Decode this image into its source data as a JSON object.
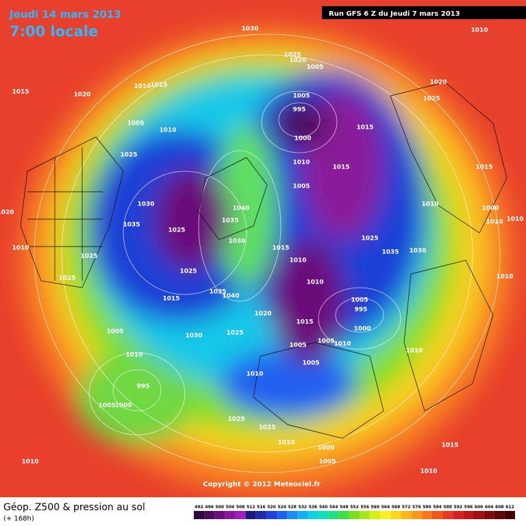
{
  "header": {
    "date": "Jeudi 14 mars 2013",
    "time": "7:00 locale",
    "run": "Run GFS 6 Z du Jeudi 7 mars 2013"
  },
  "map": {
    "isobar_labels": [
      1030,
      1010,
      1025,
      1020,
      1005,
      1015,
      1020,
      1010,
      1015,
      1020,
      1005,
      1025,
      995,
      1005,
      1010,
      1015,
      1000,
      1025,
      1010,
      1015,
      1015,
      1005,
      1030,
      1040,
      1010,
      1000,
      1020,
      1035,
      1035,
      1025,
      1010,
      1010,
      1025,
      1038,
      1010,
      1015,
      1025,
      1010,
      1035,
      1030,
      1025,
      1010,
      1025,
      1010,
      1035,
      1040,
      1015,
      1005,
      995,
      1020,
      1015,
      1000,
      1005,
      1025,
      1030,
      1005,
      1010,
      1005,
      1010,
      1010,
      1005,
      1010,
      995,
      1005,
      1000,
      1025,
      1025,
      1010,
      1000,
      1015,
      1005,
      1010,
      1010
    ],
    "copyright": "Copyright © 2012 Meteociel.fr"
  },
  "footer": {
    "title": "Géop. Z500 & pression au sol",
    "lead": "(+ 168h)",
    "scale": {
      "values": [
        492,
        496,
        500,
        504,
        508,
        512,
        516,
        520,
        524,
        528,
        532,
        536,
        540,
        544,
        548,
        552,
        556,
        560,
        564,
        568,
        572,
        576,
        580,
        584,
        588,
        592,
        596,
        600,
        604,
        608,
        612
      ],
      "colors": [
        "#2d0a3e",
        "#4b0c5a",
        "#6a0f7a",
        "#8a1a9a",
        "#a020b8",
        "#1a1a7a",
        "#1e2aa8",
        "#1f3fd6",
        "#2060f0",
        "#1e8cf5",
        "#16b2f0",
        "#10d0e0",
        "#10e0b8",
        "#20e080",
        "#40e040",
        "#7ae020",
        "#a8e818",
        "#d8f010",
        "#f8f020",
        "#f8d818",
        "#f8b818",
        "#f89818",
        "#f87818",
        "#f05818",
        "#e83820",
        "#d82020",
        "#c01818",
        "#a01010",
        "#800c0c",
        "#600808",
        "#400404"
      ]
    }
  }
}
